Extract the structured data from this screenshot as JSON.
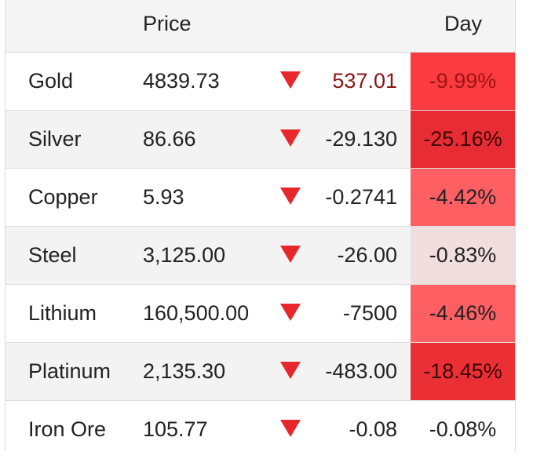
{
  "header": {
    "price_label": "Price",
    "day_label": "Day"
  },
  "rows": [
    {
      "name": "Gold",
      "price": "4839.73",
      "change": "537.01",
      "pct": "-9.99%",
      "pct_bg": "#fb3b3f",
      "pct_color": "#9e1416",
      "change_color": "#8a1518"
    },
    {
      "name": "Silver",
      "price": "86.66",
      "change": "-29.130",
      "pct": "-25.16%",
      "pct_bg": "#e72d33",
      "pct_color": "#3a0000",
      "change_color": "#222222"
    },
    {
      "name": "Copper",
      "price": "5.93",
      "change": "-0.2741",
      "pct": "-4.42%",
      "pct_bg": "#fd5f63",
      "pct_color": "#222222",
      "change_color": "#222222"
    },
    {
      "name": "Steel",
      "price": "3,125.00",
      "change": "-26.00",
      "pct": "-0.83%",
      "pct_bg": "#f1dfe0",
      "pct_color": "#222222",
      "change_color": "#222222"
    },
    {
      "name": "Lithium",
      "price": "160,500.00",
      "change": "-7500",
      "pct": "-4.46%",
      "pct_bg": "#fd5f63",
      "pct_color": "#222222",
      "change_color": "#222222"
    },
    {
      "name": "Platinum",
      "price": "2,135.30",
      "change": "-483.00",
      "pct": "-18.45%",
      "pct_bg": "#ea2f35",
      "pct_color": "#3a0000",
      "change_color": "#222222"
    },
    {
      "name": "Iron Ore",
      "price": "105.77",
      "change": "-0.08",
      "pct": "-0.08%",
      "pct_bg": "#ffffff",
      "pct_color": "#222222",
      "change_color": "#222222"
    }
  ],
  "arrow_icon": "triangle-down-icon",
  "arrow_color": "#e8272c"
}
